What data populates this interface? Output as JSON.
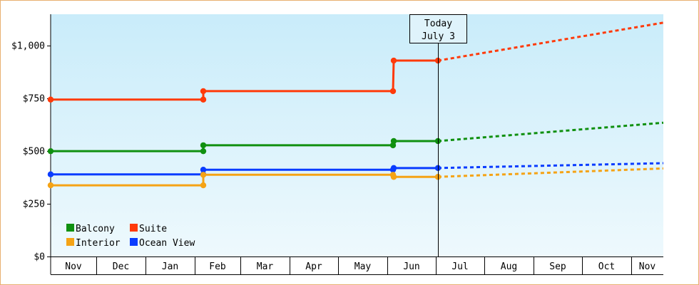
{
  "chart_data": {
    "type": "line",
    "y_ticks": [
      {
        "value": 0,
        "label": "$0"
      },
      {
        "value": 250,
        "label": "$250"
      },
      {
        "value": 500,
        "label": "$500"
      },
      {
        "value": 750,
        "label": "$750"
      },
      {
        "value": 1000,
        "label": "$1,000"
      }
    ],
    "ylim": [
      0,
      1150
    ],
    "x_months": [
      "Nov",
      "Dec",
      "Jan",
      "Feb",
      "Mar",
      "Apr",
      "May",
      "Jun",
      "Jul",
      "Aug",
      "Sep",
      "Oct",
      "Nov"
    ],
    "today": {
      "line1": "Today",
      "line2": "July 3"
    },
    "legend": [
      {
        "name": "Balcony",
        "color": "#109010"
      },
      {
        "name": "Suite",
        "color": "#ff3a0a"
      },
      {
        "name": "Interior",
        "color": "#f5a315"
      },
      {
        "name": "Ocean View",
        "color": "#0a3cff"
      }
    ],
    "series": [
      {
        "name": "Suite",
        "color": "#ff3a0a",
        "history": [
          [
            "Nov",
            745
          ],
          [
            "Feb",
            745
          ],
          [
            "Feb",
            785
          ],
          [
            "Jun",
            785
          ],
          [
            "Jun",
            930
          ],
          [
            "Jul 3",
            930
          ]
        ],
        "forecast": [
          [
            "Jul 3",
            930
          ],
          [
            "Nov",
            1110
          ]
        ]
      },
      {
        "name": "Balcony",
        "color": "#109010",
        "history": [
          [
            "Nov",
            500
          ],
          [
            "Feb",
            500
          ],
          [
            "Feb",
            528
          ],
          [
            "Jun",
            528
          ],
          [
            "Jun",
            548
          ],
          [
            "Jul 3",
            548
          ]
        ],
        "forecast": [
          [
            "Jul 3",
            548
          ],
          [
            "Nov",
            635
          ]
        ]
      },
      {
        "name": "Ocean View",
        "color": "#0a3cff",
        "history": [
          [
            "Nov",
            390
          ],
          [
            "Feb",
            390
          ],
          [
            "Feb",
            412
          ],
          [
            "Jun",
            412
          ],
          [
            "Jun",
            420
          ],
          [
            "Jul 3",
            420
          ]
        ],
        "forecast": [
          [
            "Jul 3",
            420
          ],
          [
            "Nov",
            443
          ]
        ]
      },
      {
        "name": "Interior",
        "color": "#f5a315",
        "history": [
          [
            "Nov",
            338
          ],
          [
            "Feb",
            338
          ],
          [
            "Feb",
            388
          ],
          [
            "Jun",
            388
          ],
          [
            "Jun",
            378
          ],
          [
            "Jul 3",
            378
          ]
        ],
        "forecast": [
          [
            "Jul 3",
            378
          ],
          [
            "Nov",
            418
          ]
        ]
      }
    ]
  }
}
